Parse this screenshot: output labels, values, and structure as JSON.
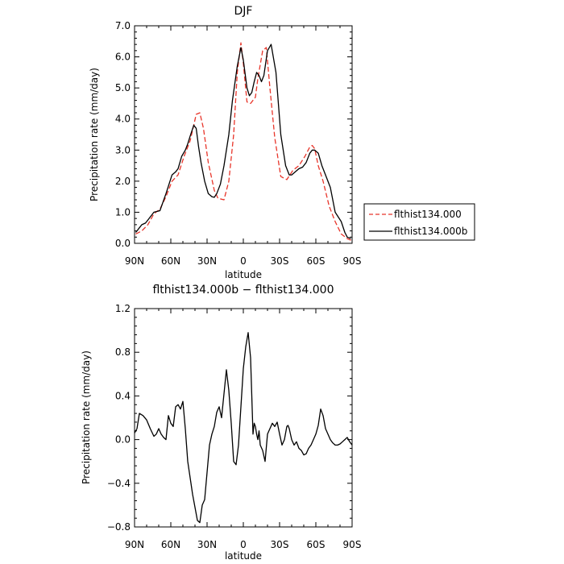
{
  "chart_data": [
    {
      "type": "line",
      "title": "DJF",
      "xlabel": "latitude",
      "ylabel": "Precipitation rate (mm/day)",
      "xlim": [
        90,
        -90
      ],
      "ylim": [
        0,
        7
      ],
      "x_ticks": [
        90,
        60,
        30,
        0,
        -30,
        -60,
        -90
      ],
      "x_tick_labels": [
        "90N",
        "60N",
        "30N",
        "0",
        "30S",
        "60S",
        "90S"
      ],
      "y_ticks": [
        0,
        1,
        2,
        3,
        4,
        5,
        6,
        7
      ],
      "y_tick_labels": [
        "0.0",
        "1.0",
        "2.0",
        "3.0",
        "4.0",
        "5.0",
        "6.0",
        "7.0"
      ],
      "legend_position": "right",
      "series": [
        {
          "name": "flthist134.000",
          "color": "#e8352a",
          "dash": "dashed",
          "x": [
            89,
            84,
            79,
            74,
            69,
            64,
            59,
            54,
            49,
            44,
            41,
            39,
            36,
            33,
            29,
            24,
            21,
            16,
            12,
            8,
            5,
            2,
            0,
            -3,
            -6,
            -10,
            -12,
            -16,
            -19,
            -22,
            -26,
            -31,
            -36,
            -41,
            -46,
            -51,
            -55,
            -57,
            -59,
            -62,
            -66,
            -71,
            -76,
            -81,
            -86,
            -89
          ],
          "y": [
            0.3,
            0.4,
            0.6,
            0.95,
            1.1,
            1.5,
            2.0,
            2.2,
            2.8,
            3.3,
            3.8,
            4.15,
            4.2,
            3.7,
            2.6,
            1.7,
            1.45,
            1.4,
            2.0,
            3.5,
            5.5,
            6.45,
            5.8,
            4.55,
            4.5,
            4.7,
            5.3,
            6.2,
            6.3,
            5.0,
            3.4,
            2.15,
            2.05,
            2.35,
            2.5,
            2.8,
            3.1,
            3.15,
            3.05,
            2.5,
            2.0,
            1.2,
            0.7,
            0.3,
            0.15,
            0.1
          ]
        },
        {
          "name": "flthist134.000b",
          "color": "#000000",
          "dash": "solid",
          "x": [
            89,
            86,
            84,
            81,
            79,
            74,
            69,
            64,
            59,
            56,
            54,
            51,
            48,
            46,
            44,
            41,
            39,
            37,
            35,
            32,
            29,
            26,
            24,
            22,
            19,
            16,
            12,
            9,
            5,
            2,
            0,
            -3,
            -5,
            -7,
            -9,
            -11,
            -13,
            -15,
            -17,
            -20,
            -23,
            -27,
            -31,
            -35,
            -38,
            -40,
            -43,
            -46,
            -49,
            -52,
            -55,
            -57,
            -59,
            -62,
            -65,
            -68,
            -72,
            -76,
            -81,
            -84,
            -86,
            -89
          ],
          "y": [
            0.35,
            0.5,
            0.6,
            0.65,
            0.75,
            1.0,
            1.05,
            1.6,
            2.2,
            2.3,
            2.4,
            2.8,
            3.0,
            3.2,
            3.45,
            3.8,
            3.7,
            3.1,
            2.6,
            2.0,
            1.6,
            1.5,
            1.48,
            1.6,
            1.9,
            2.5,
            3.5,
            4.6,
            5.7,
            6.3,
            5.9,
            5.0,
            4.75,
            4.85,
            5.2,
            5.5,
            5.4,
            5.2,
            5.4,
            6.2,
            6.4,
            5.5,
            3.5,
            2.5,
            2.2,
            2.2,
            2.3,
            2.4,
            2.45,
            2.6,
            2.9,
            3.0,
            3.0,
            2.9,
            2.5,
            2.2,
            1.8,
            1.0,
            0.7,
            0.35,
            0.2,
            0.15
          ]
        }
      ]
    },
    {
      "type": "line",
      "title": "flthist134.000b − flthist134.000",
      "xlabel": "latitude",
      "ylabel": "Precipitation rate (mm/day)",
      "xlim": [
        90,
        -90
      ],
      "ylim": [
        -0.8,
        1.2
      ],
      "x_ticks": [
        90,
        60,
        30,
        0,
        -30,
        -60,
        -90
      ],
      "x_tick_labels": [
        "90N",
        "60N",
        "30N",
        "0",
        "30S",
        "60S",
        "90S"
      ],
      "y_ticks": [
        -0.8,
        -0.4,
        0,
        0.4,
        0.8,
        1.2
      ],
      "y_tick_labels": [
        "−0.8",
        "−0.4",
        "0.0",
        "0.4",
        "0.8",
        "1.2"
      ],
      "series": [
        {
          "name": "",
          "color": "#000000",
          "dash": "solid",
          "x": [
            90,
            88,
            86,
            83,
            80,
            77,
            74,
            72,
            70,
            68,
            66,
            64,
            62,
            60,
            58,
            56,
            54,
            52,
            50,
            48,
            46,
            44,
            42,
            40,
            38,
            36,
            34,
            32,
            30,
            28,
            26,
            24,
            22,
            20,
            18,
            16,
            14,
            12,
            10,
            8,
            6,
            4,
            2,
            0,
            -2,
            -4,
            -6,
            -7,
            -8,
            -9,
            -10,
            -11,
            -12,
            -13,
            -14,
            -16,
            -18,
            -20,
            -22,
            -24,
            -26,
            -28,
            -30,
            -32,
            -34,
            -36,
            -37,
            -38,
            -40,
            -42,
            -44,
            -46,
            -48,
            -50,
            -52,
            -54,
            -56,
            -58,
            -60,
            -62,
            -64,
            -66,
            -68,
            -70,
            -72,
            -74,
            -76,
            -78,
            -80,
            -82,
            -84,
            -86,
            -88,
            -90
          ],
          "y": [
            0.06,
            0.1,
            0.24,
            0.22,
            0.18,
            0.1,
            0.03,
            0.05,
            0.1,
            0.05,
            0.02,
            0.0,
            0.22,
            0.15,
            0.12,
            0.3,
            0.32,
            0.28,
            0.35,
            0.1,
            -0.2,
            -0.35,
            -0.5,
            -0.62,
            -0.74,
            -0.76,
            -0.6,
            -0.55,
            -0.3,
            -0.05,
            0.05,
            0.12,
            0.25,
            0.3,
            0.2,
            0.42,
            0.64,
            0.45,
            0.15,
            -0.2,
            -0.23,
            -0.05,
            0.3,
            0.65,
            0.85,
            0.98,
            0.75,
            0.4,
            0.05,
            0.15,
            0.12,
            0.05,
            0.0,
            0.08,
            -0.05,
            -0.1,
            -0.2,
            0.05,
            0.1,
            0.15,
            0.12,
            0.16,
            0.05,
            -0.05,
            0.0,
            0.12,
            0.13,
            0.1,
            0.0,
            -0.05,
            -0.02,
            -0.08,
            -0.1,
            -0.14,
            -0.13,
            -0.08,
            -0.05,
            0.0,
            0.05,
            0.13,
            0.28,
            0.22,
            0.1,
            0.05,
            0.0,
            -0.03,
            -0.05,
            -0.05,
            -0.04,
            -0.02,
            0.0,
            0.02,
            -0.02,
            -0.05
          ]
        }
      ]
    }
  ]
}
